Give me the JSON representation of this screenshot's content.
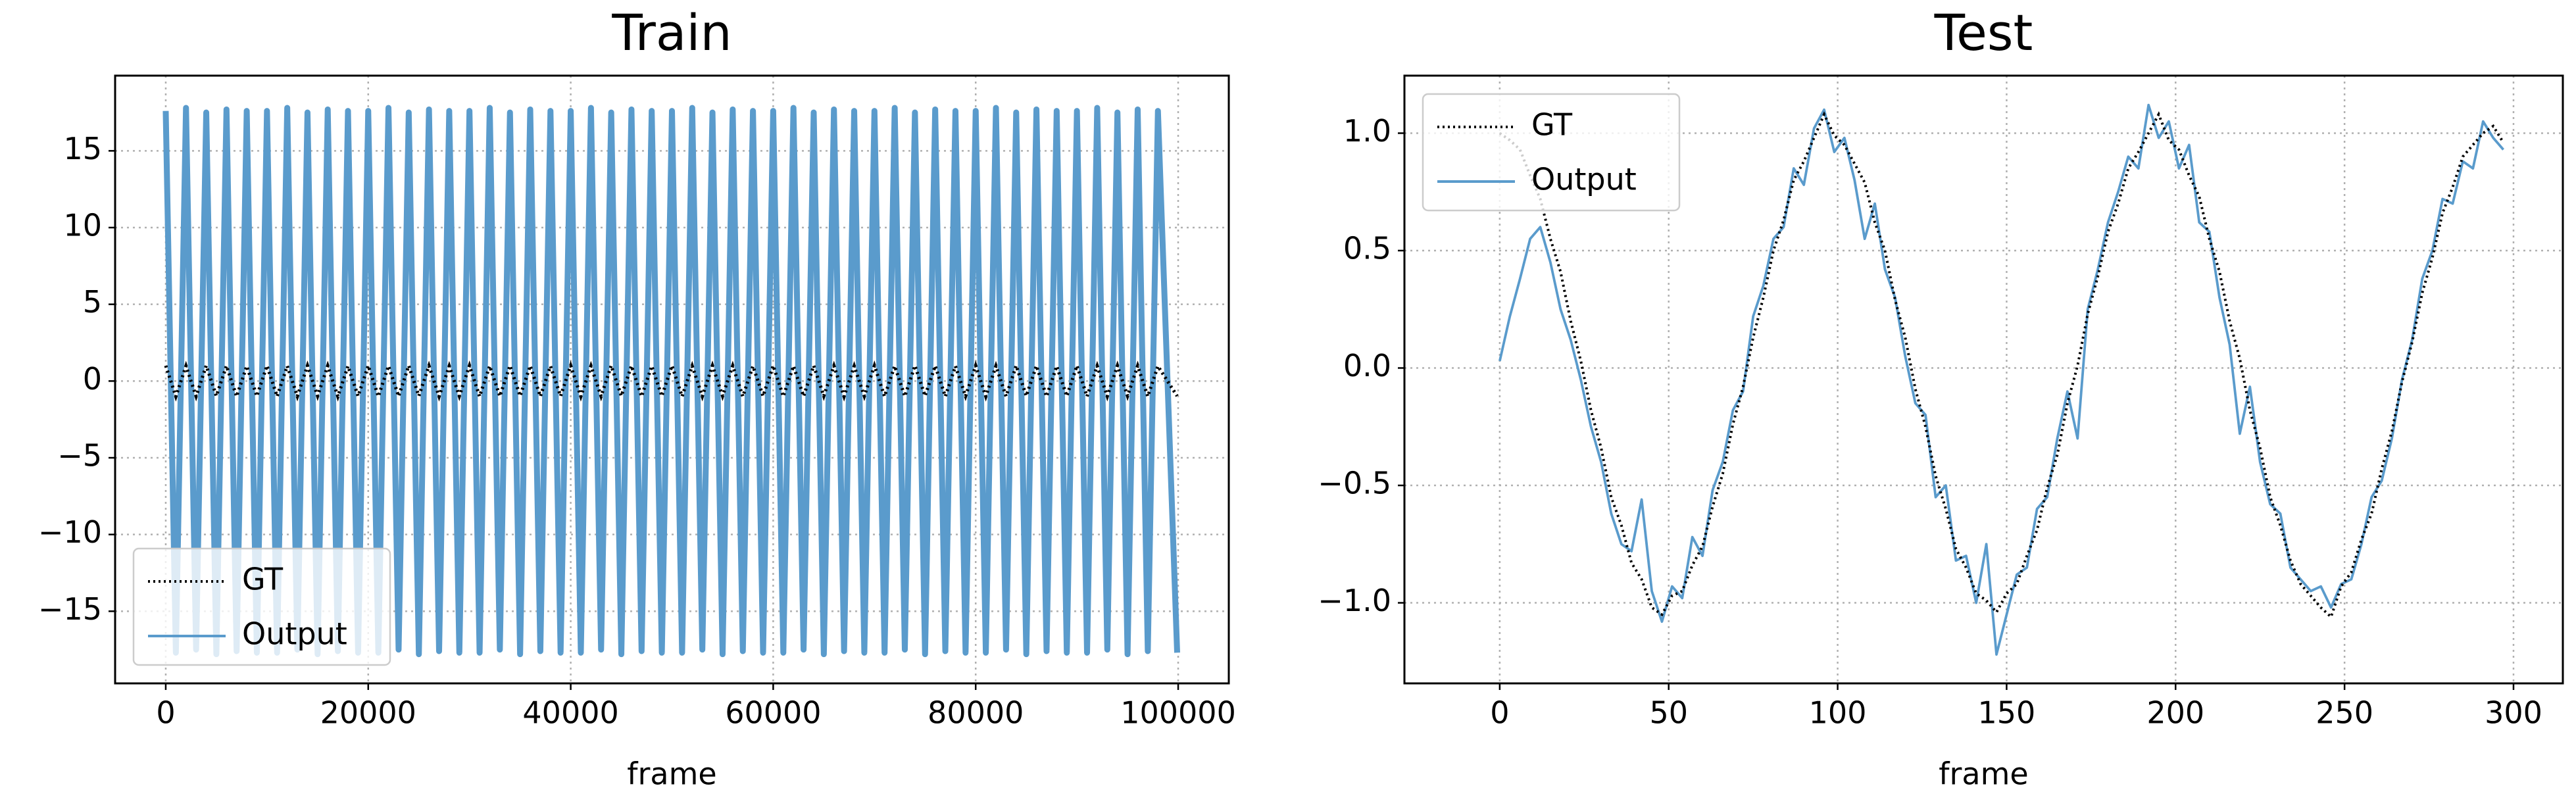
{
  "chart_data": [
    {
      "type": "line",
      "title": "Train",
      "xlabel": "frame",
      "x": [
        0,
        1000,
        2000,
        3000,
        4000,
        5000,
        6000,
        7000,
        8000,
        9000,
        10000,
        11000,
        12000,
        13000,
        14000,
        15000,
        16000,
        17000,
        18000,
        19000,
        20000,
        21000,
        22000,
        23000,
        24000,
        25000,
        26000,
        27000,
        28000,
        29000,
        30000,
        31000,
        32000,
        33000,
        34000,
        35000,
        36000,
        37000,
        38000,
        39000,
        40000,
        41000,
        42000,
        43000,
        44000,
        45000,
        46000,
        47000,
        48000,
        49000,
        50000,
        51000,
        52000,
        53000,
        54000,
        55000,
        56000,
        57000,
        58000,
        59000,
        60000,
        61000,
        62000,
        63000,
        64000,
        65000,
        66000,
        67000,
        68000,
        69000,
        70000,
        71000,
        72000,
        73000,
        74000,
        75000,
        76000,
        77000,
        78000,
        79000,
        80000,
        81000,
        82000,
        83000,
        84000,
        85000,
        86000,
        87000,
        88000,
        89000,
        90000,
        91000,
        92000,
        93000,
        94000,
        95000,
        96000,
        97000,
        98000,
        99900
      ],
      "series": [
        {
          "name": "Output",
          "color": "#5a9bcc",
          "style": "solid",
          "values": [
            17.6,
            -17.7,
            17.8,
            -17.5,
            17.5,
            -17.8,
            17.7,
            -17.6,
            17.6,
            -17.7,
            17.6,
            -17.7,
            17.8,
            -17.5,
            17.5,
            -17.8,
            17.7,
            -17.6,
            17.6,
            -17.7,
            17.6,
            -17.7,
            17.8,
            -17.5,
            17.5,
            -17.8,
            17.7,
            -17.6,
            17.6,
            -17.7,
            17.6,
            -17.7,
            17.8,
            -17.5,
            17.5,
            -17.8,
            17.7,
            -17.6,
            17.6,
            -17.7,
            17.6,
            -17.7,
            17.8,
            -17.5,
            17.5,
            -17.8,
            17.7,
            -17.6,
            17.6,
            -17.7,
            17.6,
            -17.7,
            17.8,
            -17.5,
            17.5,
            -17.8,
            17.7,
            -17.6,
            17.6,
            -17.7,
            17.6,
            -17.7,
            17.8,
            -17.5,
            17.5,
            -17.8,
            17.7,
            -17.6,
            17.6,
            -17.7,
            17.6,
            -17.7,
            17.8,
            -17.5,
            17.5,
            -17.8,
            17.7,
            -17.6,
            17.6,
            -17.7,
            17.6,
            -17.7,
            17.8,
            -17.5,
            17.5,
            -17.8,
            17.7,
            -17.6,
            17.6,
            -17.7,
            17.6,
            -17.7,
            17.8,
            -17.5,
            17.5,
            -17.8,
            17.7,
            -17.6,
            17.6,
            -17.7
          ]
        },
        {
          "name": "GT",
          "color": "#000000",
          "style": "dotted",
          "values": [
            1.0,
            -1.0,
            0.98,
            -0.99,
            1.0,
            -0.97,
            0.99,
            -1.0,
            0.97,
            -0.98,
            1.0,
            -1.0,
            0.98,
            -0.99,
            1.0,
            -0.97,
            0.99,
            -1.0,
            0.97,
            -0.98,
            1.0,
            -1.0,
            0.98,
            -0.99,
            1.0,
            -0.97,
            0.99,
            -1.0,
            0.97,
            -0.98,
            1.0,
            -1.0,
            0.98,
            -0.99,
            1.0,
            -0.97,
            0.99,
            -1.0,
            0.97,
            -0.98,
            1.0,
            -1.0,
            0.98,
            -0.99,
            1.0,
            -0.97,
            0.99,
            -1.0,
            0.97,
            -0.98,
            1.0,
            -1.0,
            0.98,
            -0.99,
            1.0,
            -0.97,
            0.99,
            -1.0,
            0.97,
            -0.98,
            1.0,
            -1.0,
            0.98,
            -0.99,
            1.0,
            -0.97,
            0.99,
            -1.0,
            0.97,
            -0.98,
            1.0,
            -1.0,
            0.98,
            -0.99,
            1.0,
            -0.97,
            0.99,
            -1.0,
            0.97,
            -0.98,
            1.0,
            -1.0,
            0.98,
            -0.99,
            1.0,
            -0.97,
            0.99,
            -1.0,
            0.97,
            -0.98,
            1.0,
            -1.0,
            0.98,
            -0.99,
            1.0,
            -0.97,
            0.99,
            -1.0,
            0.97,
            -0.98
          ]
        }
      ],
      "legend_order": [
        "GT",
        "Output"
      ],
      "xlim": [
        -5000,
        105000
      ],
      "ylim": [
        -19.7,
        19.9
      ],
      "xticks": [
        0,
        20000,
        40000,
        60000,
        80000,
        100000
      ],
      "yticks": [
        {
          "value": -15,
          "label": "−15"
        },
        {
          "value": -10,
          "label": "−10"
        },
        {
          "value": -5,
          "label": "−5"
        },
        0,
        5,
        10,
        15
      ],
      "grid": true,
      "legend": "lower left"
    },
    {
      "type": "line",
      "title": "Test",
      "xlabel": "frame",
      "x": [
        0,
        3,
        6,
        9,
        12,
        15,
        18,
        21,
        24,
        27,
        30,
        33,
        36,
        39,
        42,
        45,
        48,
        51,
        54,
        57,
        60,
        63,
        66,
        69,
        72,
        75,
        78,
        81,
        84,
        87,
        90,
        93,
        96,
        99,
        102,
        105,
        108,
        111,
        114,
        117,
        120,
        123,
        126,
        129,
        132,
        135,
        138,
        141,
        144,
        147,
        150,
        153,
        156,
        159,
        162,
        165,
        168,
        171,
        174,
        177,
        180,
        183,
        186,
        189,
        192,
        195,
        198,
        201,
        204,
        207,
        210,
        213,
        216,
        219,
        222,
        225,
        228,
        231,
        234,
        237,
        240,
        243,
        246,
        249,
        252,
        255,
        258,
        261,
        264,
        267,
        270,
        273,
        276,
        279,
        282,
        285,
        288,
        291,
        294,
        297
      ],
      "series": [
        {
          "name": "Output",
          "color": "#5a9bcc",
          "style": "solid",
          "values": [
            0.03,
            0.22,
            0.38,
            0.55,
            0.6,
            0.45,
            0.25,
            0.12,
            -0.05,
            -0.25,
            -0.4,
            -0.62,
            -0.75,
            -0.78,
            -0.56,
            -0.95,
            -1.08,
            -0.93,
            -0.98,
            -0.72,
            -0.8,
            -0.52,
            -0.4,
            -0.18,
            -0.1,
            0.22,
            0.35,
            0.55,
            0.6,
            0.85,
            0.78,
            1.02,
            1.1,
            0.92,
            0.98,
            0.8,
            0.55,
            0.7,
            0.42,
            0.3,
            0.05,
            -0.15,
            -0.2,
            -0.55,
            -0.5,
            -0.82,
            -0.8,
            -1.0,
            -0.75,
            -1.22,
            -1.05,
            -0.88,
            -0.85,
            -0.6,
            -0.55,
            -0.3,
            -0.1,
            -0.3,
            0.25,
            0.42,
            0.62,
            0.75,
            0.9,
            0.85,
            1.12,
            0.98,
            1.05,
            0.85,
            0.95,
            0.62,
            0.58,
            0.3,
            0.1,
            -0.28,
            -0.08,
            -0.4,
            -0.58,
            -0.62,
            -0.85,
            -0.9,
            -0.95,
            -0.93,
            -1.02,
            -0.92,
            -0.9,
            -0.75,
            -0.55,
            -0.48,
            -0.3,
            -0.05,
            0.12,
            0.38,
            0.5,
            0.72,
            0.7,
            0.88,
            0.85,
            1.05,
            0.98,
            0.93
          ]
        },
        {
          "name": "GT",
          "color": "#000000",
          "style": "dotted",
          "values": [
            1.0,
            0.97,
            0.93,
            0.82,
            0.72,
            0.55,
            0.41,
            0.2,
            0.03,
            -0.18,
            -0.34,
            -0.55,
            -0.67,
            -0.83,
            -0.9,
            -1.02,
            -1.05,
            -0.97,
            -0.95,
            -0.84,
            -0.76,
            -0.59,
            -0.45,
            -0.24,
            -0.08,
            0.13,
            0.3,
            0.5,
            0.63,
            0.8,
            0.88,
            0.98,
            1.08,
            0.99,
            0.95,
            0.87,
            0.79,
            0.62,
            0.5,
            0.29,
            0.13,
            -0.09,
            -0.25,
            -0.46,
            -0.6,
            -0.77,
            -0.85,
            -0.96,
            -0.99,
            -1.04,
            -0.96,
            -0.92,
            -0.8,
            -0.69,
            -0.51,
            -0.37,
            -0.15,
            0.01,
            0.23,
            0.39,
            0.58,
            0.7,
            0.85,
            0.92,
            1.0,
            1.08,
            0.97,
            0.93,
            0.82,
            0.73,
            0.55,
            0.41,
            0.2,
            0.04,
            -0.18,
            -0.34,
            -0.55,
            -0.67,
            -0.82,
            -0.92,
            -0.97,
            -1.02,
            -1.06,
            -0.93,
            -0.87,
            -0.73,
            -0.62,
            -0.43,
            -0.27,
            -0.06,
            0.11,
            0.32,
            0.47,
            0.66,
            0.77,
            0.9,
            0.95,
            1.0,
            1.03,
            0.96
          ]
        }
      ],
      "legend_order": [
        "GT",
        "Output"
      ],
      "xlim": [
        -28.2,
        314.6
      ],
      "ylim": [
        -1.343,
        1.245
      ],
      "xticks": [
        0,
        50,
        100,
        150,
        200,
        250,
        300
      ],
      "yticks": [
        {
          "value": -1,
          "label": "−1.0"
        },
        {
          "value": -0.5,
          "label": "−0.5"
        },
        {
          "value": 0,
          "label": "0.0"
        },
        {
          "value": 0.5,
          "label": "0.5"
        },
        {
          "value": 1,
          "label": "1.0"
        }
      ],
      "grid": true,
      "legend": "upper left"
    }
  ]
}
